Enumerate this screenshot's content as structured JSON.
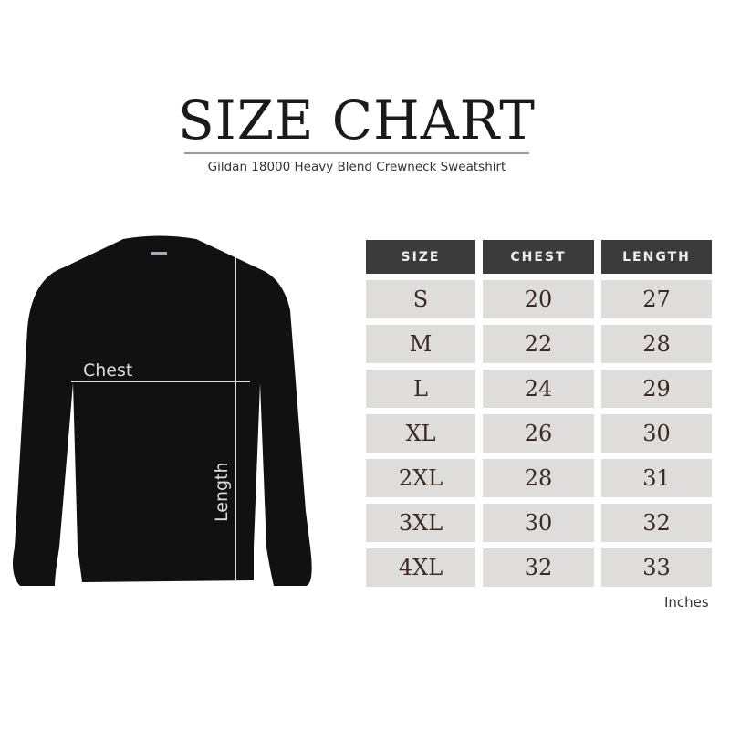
{
  "title": "SIZE CHART",
  "subtitle": "Gildan 18000 Heavy Blend Crewneck Sweatshirt",
  "diagram": {
    "chest_label": "Chest",
    "length_label": "Length"
  },
  "table": {
    "headers": [
      "SIZE",
      "CHEST",
      "LENGTH"
    ],
    "rows": [
      [
        "S",
        "20",
        "27"
      ],
      [
        "M",
        "22",
        "28"
      ],
      [
        "L",
        "24",
        "29"
      ],
      [
        "XL",
        "26",
        "30"
      ],
      [
        "2XL",
        "28",
        "31"
      ],
      [
        "3XL",
        "30",
        "32"
      ],
      [
        "4XL",
        "32",
        "33"
      ]
    ]
  },
  "unit": "Inches",
  "colors": {
    "header": "#3b3b3b",
    "cell": "#dedddb",
    "garment": "#111111"
  }
}
